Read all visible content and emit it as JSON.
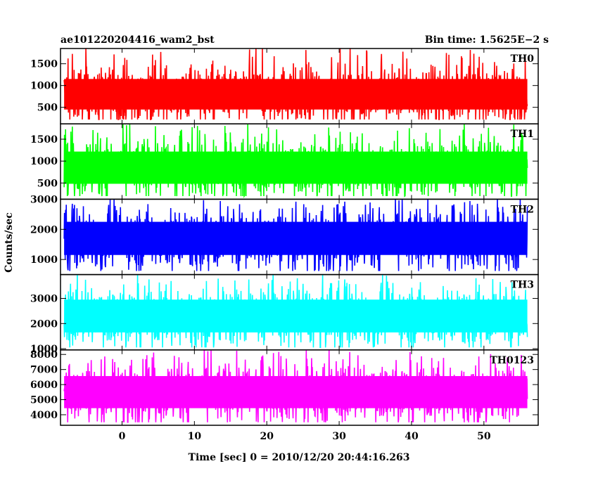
{
  "header": {
    "title": "ae101220204416_wam2_bst",
    "bin_time": "Bin time: 1.5625E−2 s"
  },
  "ylabel": "Counts/sec",
  "xlabel": "Time [sec] 0 = 2010/12/20 20:44:16.263",
  "chart_data": {
    "type": "line",
    "title": "ae101220204416_wam2_bst",
    "xlabel": "Time [sec] 0 = 2010/12/20 20:44:16.263",
    "ylabel": "Counts/sec",
    "xlim": [
      -8.5,
      57.5
    ],
    "xticks": [
      0,
      10,
      20,
      30,
      40,
      50
    ],
    "x_data_range": [
      -8,
      56
    ],
    "bin_time_s": 0.015625,
    "panels": [
      {
        "name": "TH0",
        "color": "#ff0000",
        "ylim": [
          120,
          1850
        ],
        "yticks": [
          500,
          1000,
          1500
        ],
        "mean": 800,
        "typical_low": 330,
        "typical_high": 1350,
        "max": 1850,
        "min": 220
      },
      {
        "name": "TH1",
        "color": "#00ff00",
        "ylim": [
          130,
          1850
        ],
        "yticks": [
          500,
          1000,
          1500
        ],
        "mean": 850,
        "typical_low": 330,
        "typical_high": 1400,
        "max": 1850,
        "min": 200
      },
      {
        "name": "TH2",
        "color": "#0000ff",
        "ylim": [
          500,
          3000
        ],
        "yticks": [
          1000,
          2000,
          3000
        ],
        "mean": 1700,
        "typical_low": 900,
        "typical_high": 2500,
        "max": 3000,
        "min": 620
      },
      {
        "name": "TH3",
        "color": "#00ffff",
        "ylim": [
          950,
          3950
        ],
        "yticks": [
          1000,
          2000,
          3000
        ],
        "mean": 2300,
        "typical_low": 1300,
        "typical_high": 3200,
        "max": 3950,
        "min": 1050
      },
      {
        "name": "TH0123",
        "color": "#ff00ff",
        "ylim": [
          3300,
          8300
        ],
        "yticks": [
          4000,
          5000,
          6000,
          7000,
          8000
        ],
        "mean": 5500,
        "typical_low": 4000,
        "typical_high": 7100,
        "max": 8300,
        "min": 3500
      }
    ]
  }
}
